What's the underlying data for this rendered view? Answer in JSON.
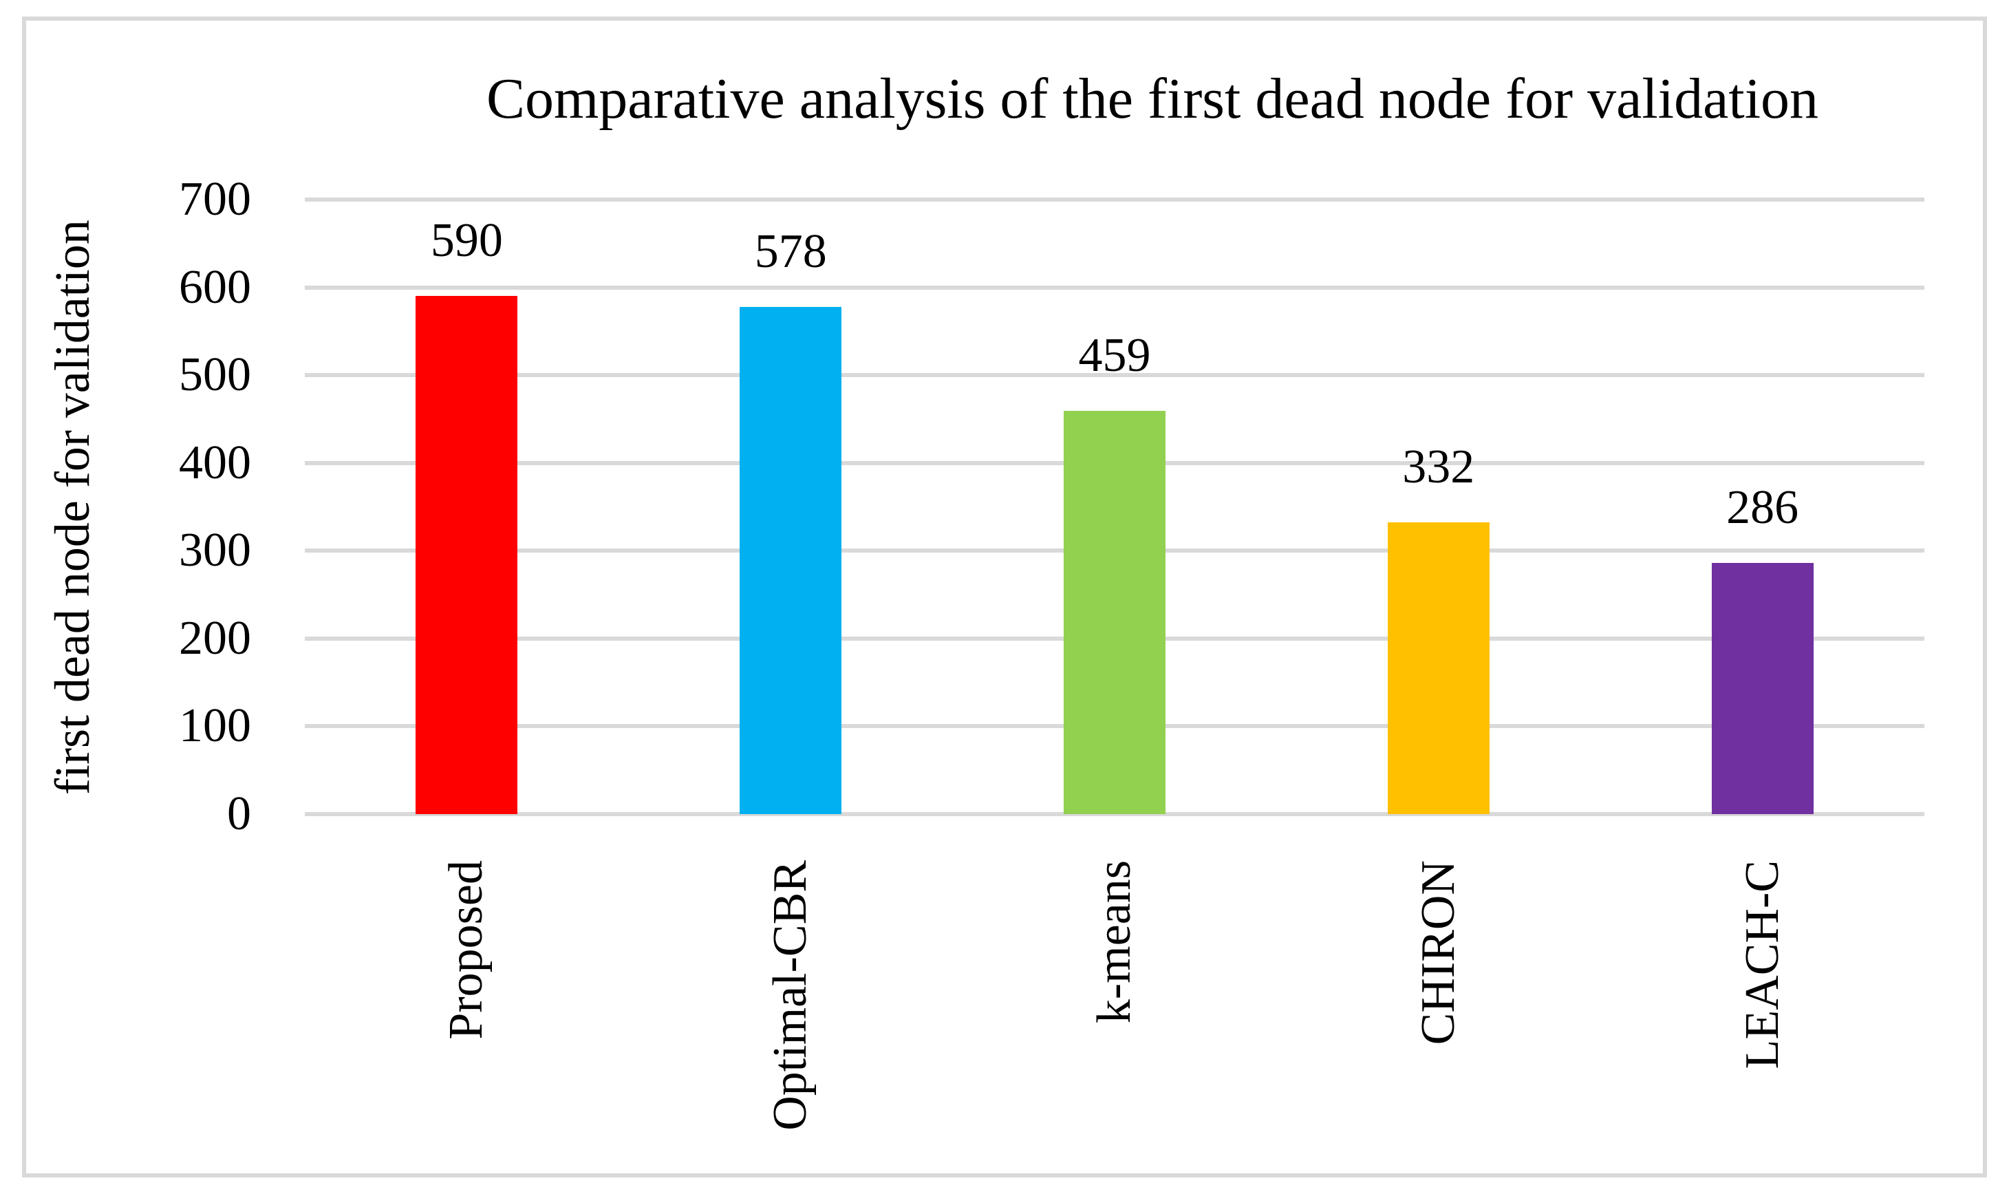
{
  "chart_data": {
    "type": "bar",
    "title": "Comparative analysis of the first dead node for validation",
    "categories": [
      "Proposed",
      "Optimal-CBR",
      "k-means",
      "CHIRON",
      "LEACH-C"
    ],
    "values": [
      590,
      578,
      459,
      332,
      286
    ],
    "data_labels": [
      "590",
      "578",
      "459",
      "332",
      "286"
    ],
    "bar_colors": [
      "#FF0000",
      "#00B0F0",
      "#92D050",
      "#FFC000",
      "#7030A0"
    ],
    "xlabel": "",
    "ylabel": "first dead node for validation",
    "ylim": [
      0,
      700
    ],
    "ytick_step": 100,
    "yticks": [
      "0",
      "100",
      "200",
      "300",
      "400",
      "500",
      "600",
      "700"
    ],
    "grid": "horizontal",
    "gridline_color": "#D9D9D9",
    "frame_border_color": "#D9D9D9",
    "legend_position": "none"
  }
}
